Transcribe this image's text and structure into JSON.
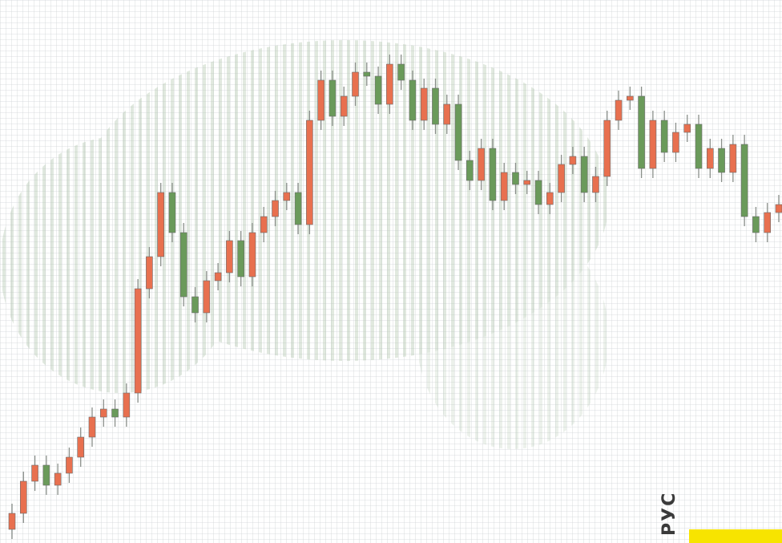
{
  "chart_data": {
    "type": "candlestick",
    "up_color": "#e8704f",
    "down_color": "#6a9a5a",
    "ylim": [
      0,
      677
    ],
    "open": [
      17,
      37,
      77,
      97,
      72,
      87,
      107,
      132,
      157,
      167,
      157,
      187,
      317,
      357,
      437,
      387,
      307,
      287,
      327,
      337,
      377,
      332,
      387,
      407,
      427,
      437,
      397,
      527,
      577,
      532,
      557,
      587,
      582,
      547,
      597,
      577,
      527,
      567,
      522,
      547,
      477,
      452,
      492,
      427,
      462,
      447,
      452,
      422,
      437,
      472,
      482,
      437,
      457,
      527,
      552,
      557,
      467,
      527,
      487,
      512,
      522,
      467,
      492,
      462,
      497,
      407,
      387,
      412
    ],
    "high": [
      49,
      89,
      109,
      109,
      99,
      119,
      144,
      169,
      179,
      179,
      199,
      329,
      369,
      449,
      449,
      399,
      319,
      339,
      349,
      389,
      389,
      399,
      419,
      439,
      449,
      449,
      539,
      589,
      589,
      569,
      599,
      599,
      594,
      609,
      609,
      589,
      579,
      579,
      559,
      559,
      489,
      504,
      504,
      474,
      474,
      464,
      464,
      449,
      484,
      494,
      494,
      469,
      539,
      564,
      569,
      569,
      539,
      539,
      524,
      534,
      534,
      504,
      504,
      509,
      509,
      419,
      424,
      434
    ],
    "low": [
      5,
      25,
      65,
      60,
      60,
      75,
      95,
      120,
      145,
      145,
      145,
      175,
      305,
      345,
      375,
      295,
      275,
      275,
      315,
      325,
      320,
      320,
      375,
      395,
      415,
      385,
      385,
      515,
      520,
      520,
      545,
      570,
      535,
      535,
      565,
      515,
      515,
      510,
      510,
      465,
      440,
      440,
      415,
      415,
      435,
      435,
      410,
      410,
      425,
      460,
      425,
      425,
      445,
      515,
      540,
      455,
      455,
      475,
      475,
      500,
      455,
      455,
      450,
      450,
      395,
      375,
      375,
      400
    ],
    "close": [
      37,
      77,
      97,
      72,
      87,
      107,
      132,
      157,
      167,
      157,
      187,
      317,
      357,
      437,
      387,
      307,
      287,
      327,
      337,
      377,
      332,
      387,
      407,
      427,
      437,
      397,
      527,
      577,
      532,
      557,
      587,
      582,
      547,
      597,
      577,
      527,
      567,
      522,
      547,
      477,
      452,
      492,
      427,
      462,
      447,
      452,
      422,
      437,
      472,
      482,
      437,
      457,
      527,
      552,
      557,
      467,
      527,
      487,
      512,
      522,
      467,
      492,
      462,
      497,
      407,
      387,
      412,
      422
    ],
    "annotation": "РУС"
  }
}
